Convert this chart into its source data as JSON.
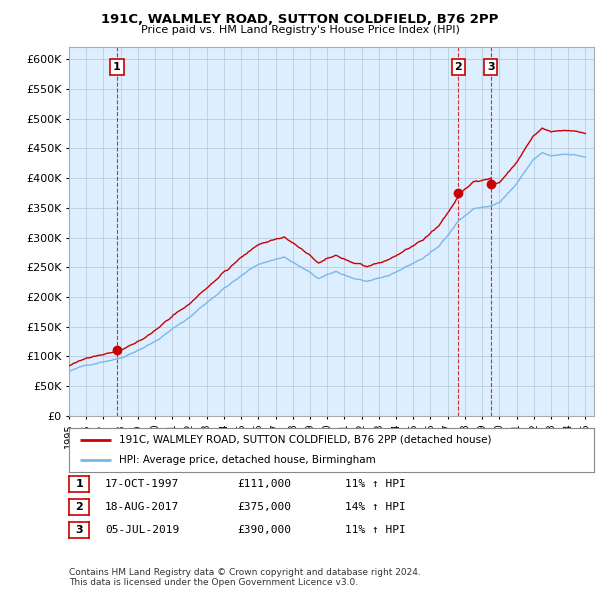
{
  "title": "191C, WALMLEY ROAD, SUTTON COLDFIELD, B76 2PP",
  "subtitle": "Price paid vs. HM Land Registry's House Price Index (HPI)",
  "ytick_values": [
    0,
    50000,
    100000,
    150000,
    200000,
    250000,
    300000,
    350000,
    400000,
    450000,
    500000,
    550000,
    600000
  ],
  "xlim_start": 1995.0,
  "xlim_end": 2025.5,
  "ylim_min": 0,
  "ylim_max": 620000,
  "sale_dates": [
    1997.79,
    2017.62,
    2019.5
  ],
  "sale_prices": [
    111000,
    375000,
    390000
  ],
  "sale_labels": [
    "1",
    "2",
    "3"
  ],
  "hpi_color": "#7ab8e8",
  "price_color": "#cc0000",
  "plot_bg_color": "#ddeeff",
  "legend_price_label": "191C, WALMLEY ROAD, SUTTON COLDFIELD, B76 2PP (detached house)",
  "legend_hpi_label": "HPI: Average price, detached house, Birmingham",
  "table_rows": [
    [
      "1",
      "17-OCT-1997",
      "£111,000",
      "11% ↑ HPI"
    ],
    [
      "2",
      "18-AUG-2017",
      "£375,000",
      "14% ↑ HPI"
    ],
    [
      "3",
      "05-JUL-2019",
      "£390,000",
      "11% ↑ HPI"
    ]
  ],
  "footer": "Contains HM Land Registry data © Crown copyright and database right 2024.\nThis data is licensed under the Open Government Licence v3.0.",
  "background_color": "#ffffff",
  "grid_color": "#bbccdd"
}
